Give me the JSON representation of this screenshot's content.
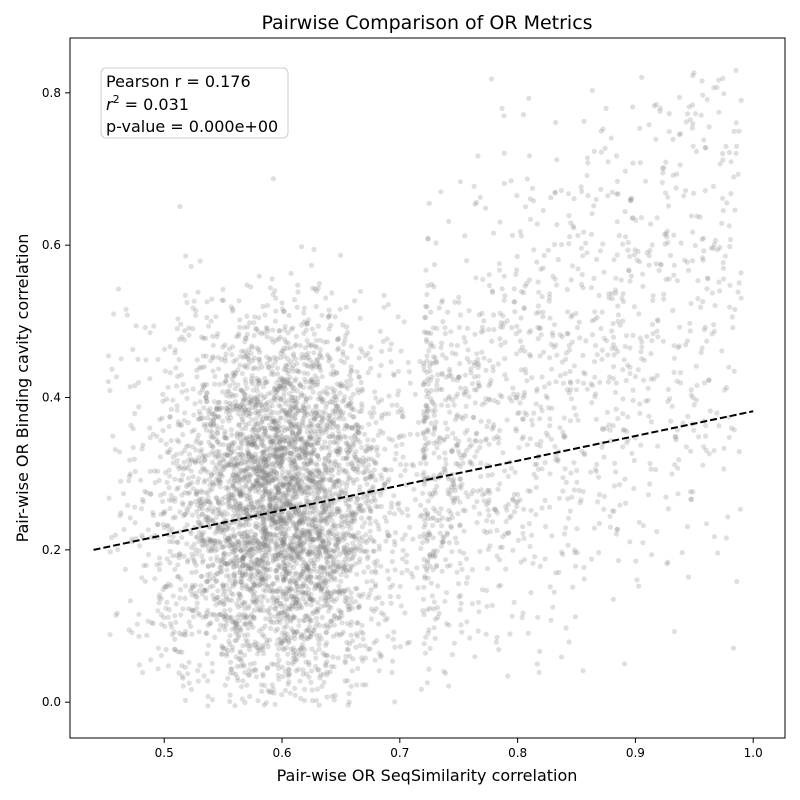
{
  "chart_data": {
    "type": "scatter",
    "title": "Pairwise Comparison of OR Metrics",
    "xlabel": "Pair-wise OR SeqSimilarity correlation",
    "ylabel": "Pair-wise OR Binding cavity correlation",
    "xlim": [
      0.42,
      1.027
    ],
    "ylim": [
      -0.047,
      0.872
    ],
    "xticks": [
      0.5,
      0.6,
      0.7,
      0.8,
      0.9,
      1.0
    ],
    "xtick_labels": [
      "0.5",
      "0.6",
      "0.7",
      "0.8",
      "0.9",
      "1.0"
    ],
    "yticks": [
      0.0,
      0.2,
      0.4,
      0.6,
      0.8
    ],
    "ytick_labels": [
      "0.0",
      "0.2",
      "0.4",
      "0.6",
      "0.8"
    ],
    "grid": false,
    "point_color": "#808080",
    "point_alpha": 0.25,
    "trend_color": "#000000",
    "trend_style": "dashed",
    "trend_line": {
      "x": [
        0.44,
        1.0
      ],
      "y": [
        0.2,
        0.382
      ]
    },
    "annotation": {
      "pearson": "Pearson r = 0.176",
      "r2_symbol": "r",
      "r2_sup": "2",
      "r2_value": " = 0.031",
      "pvalue": "p-value = 0.000e+00",
      "placement": "top-left"
    },
    "distribution": {
      "dense_core": {
        "x_mean": 0.6,
        "x_sd": 0.045,
        "y_mean": 0.26,
        "y_sd": 0.12,
        "x_range": [
          0.47,
          0.76
        ],
        "y_range": [
          0.0,
          0.55
        ]
      },
      "sparse_tail": {
        "x_range": [
          0.72,
          0.99
        ],
        "y_range": [
          0.02,
          0.83
        ]
      }
    }
  }
}
